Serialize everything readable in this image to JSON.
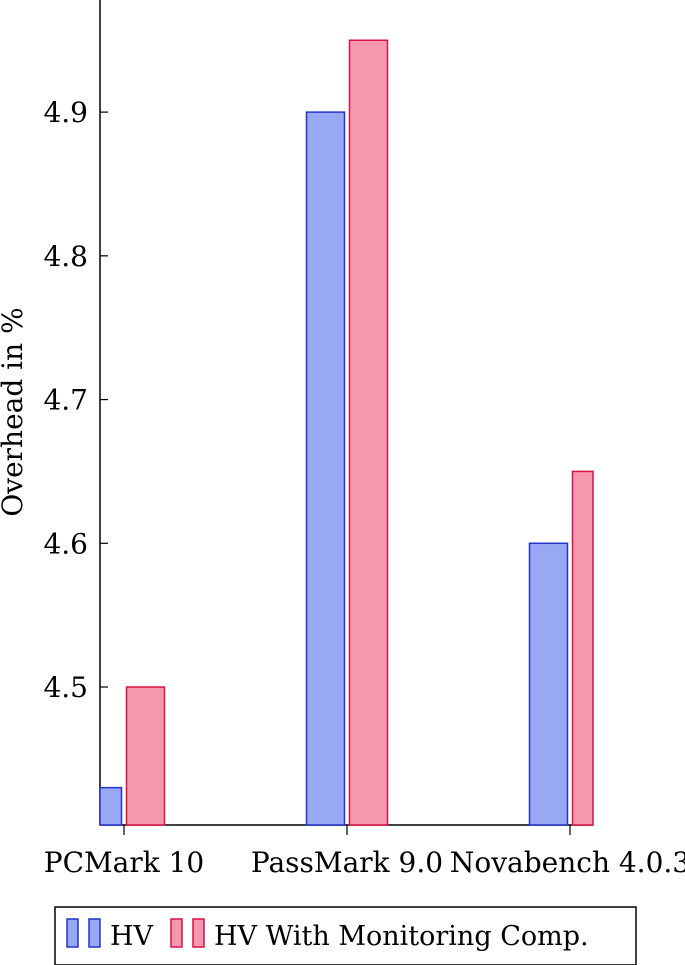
{
  "chart_data": {
    "type": "bar",
    "ylabel": "Overhead in %",
    "categories": [
      "PCMark 10",
      "PassMark 9.0",
      "Novabench 4.0.3"
    ],
    "series": [
      {
        "name": "HV",
        "values": [
          4.43,
          4.9,
          4.6
        ],
        "fill": "#99A8F5",
        "stroke": "#2233CC"
      },
      {
        "name": "HV With Monitoring Comp.",
        "values": [
          4.5,
          4.95,
          4.65
        ],
        "fill": "#F598B0",
        "stroke": "#DD1144"
      }
    ],
    "yticks": [
      "4.5",
      "4.6",
      "4.7",
      "4.8",
      "4.9"
    ],
    "ylim": [
      4.404,
      4.978
    ],
    "grid": false,
    "legend_position": "bottom"
  }
}
